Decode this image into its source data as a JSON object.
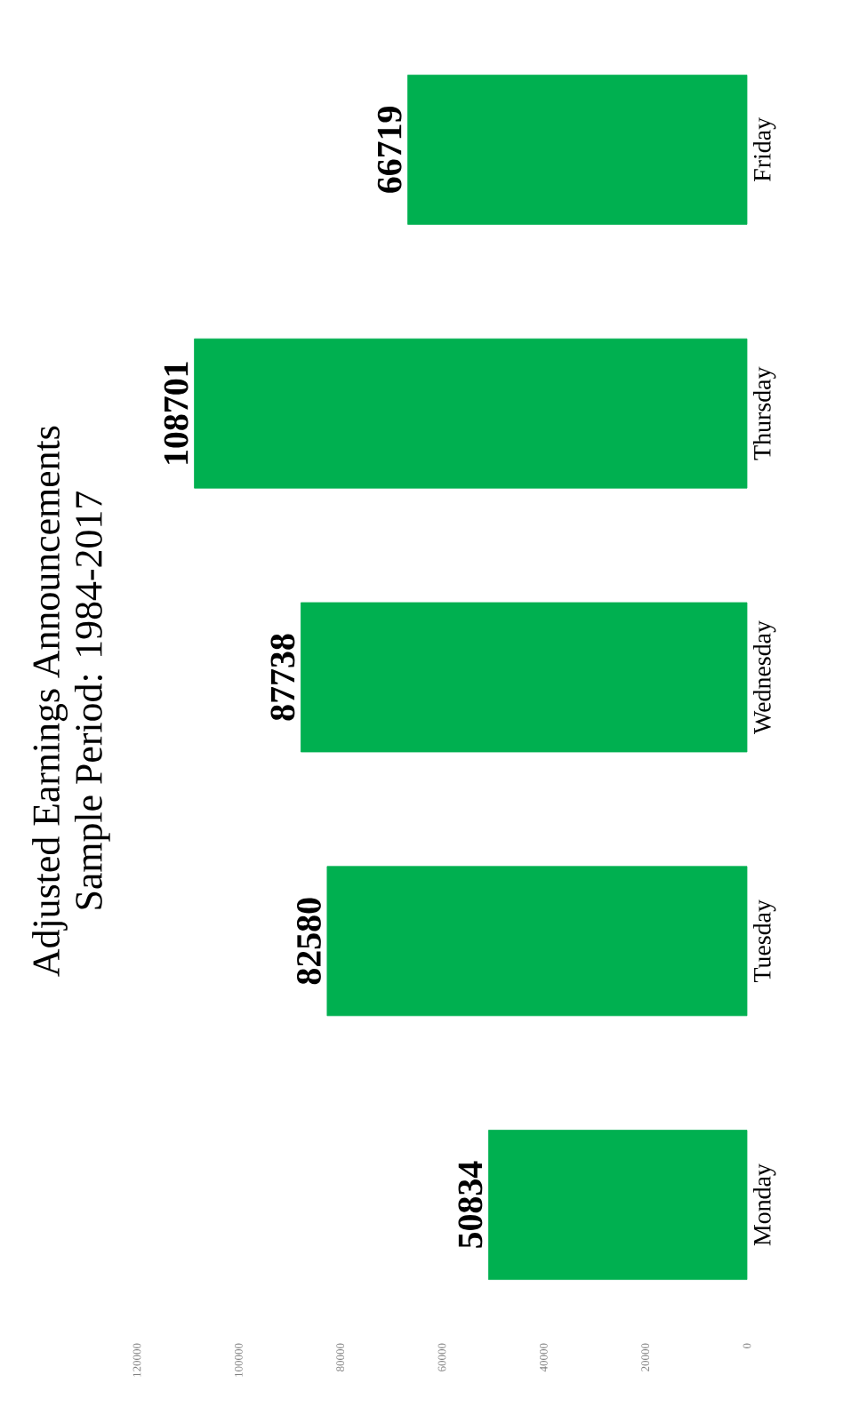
{
  "chart_data": {
    "type": "bar",
    "orientation": "horizontal",
    "title": "Adjusted Earnings Announcements",
    "subtitle": "Sample Period: 1984-2017",
    "categories": [
      "Friday",
      "Thursday",
      "Wednesday",
      "Tuesday",
      "Monday"
    ],
    "values": [
      66719,
      108701,
      87738,
      82580,
      50834
    ],
    "color": "#00b050",
    "xlim": [
      120000,
      0
    ],
    "xticks": [
      0,
      20000,
      40000,
      60000,
      80000,
      100000,
      120000
    ],
    "data_labels": true
  }
}
